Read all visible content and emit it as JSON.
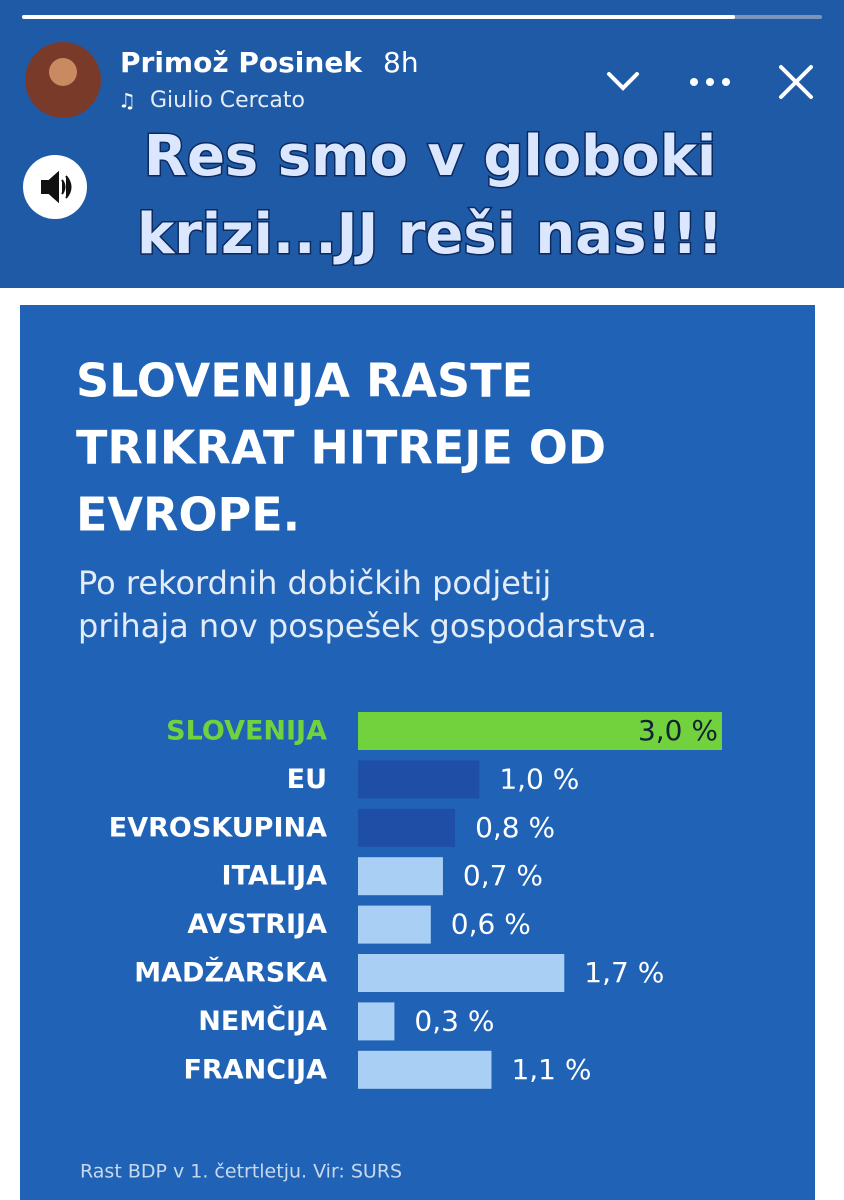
{
  "story": {
    "user": "Primož Posinek",
    "time": "8h",
    "music": "Giulio Cercato",
    "caption": [
      "Res smo v globoki",
      "krizi...JJ reši nas!!!"
    ]
  },
  "chart_data": {
    "type": "bar",
    "orientation": "horizontal",
    "title": [
      "SLOVENIJA RASTE",
      "TRIKRAT HITREJE OD",
      "EVROPE."
    ],
    "subtitle": [
      "Po rekordnih dobičkih podjetij",
      "prihaja nov pospešek gospodarstva."
    ],
    "categories": [
      "SLOVENIJA",
      "EU",
      "EVROSKUPINA",
      "ITALIJA",
      "AVSTRIJA",
      "MADŽARSKA",
      "NEMČIJA",
      "FRANCIJA"
    ],
    "values": [
      3.0,
      1.0,
      0.8,
      0.7,
      0.6,
      1.7,
      0.3,
      1.1
    ],
    "value_labels": [
      "3,0 %",
      "1,0 %",
      "0,8 %",
      "0,7 %",
      "0,6 %",
      "1,7 %",
      "0,3 %",
      "1,1 %"
    ],
    "colors": [
      "#72d23e",
      "#1e4ea6",
      "#1e4ea6",
      "#a9cff4",
      "#a9cff4",
      "#a9cff4",
      "#a9cff4",
      "#a9cff4"
    ],
    "highlight": 0,
    "source": "Rast BDP v 1. četrtletju. Vir: SURS"
  }
}
